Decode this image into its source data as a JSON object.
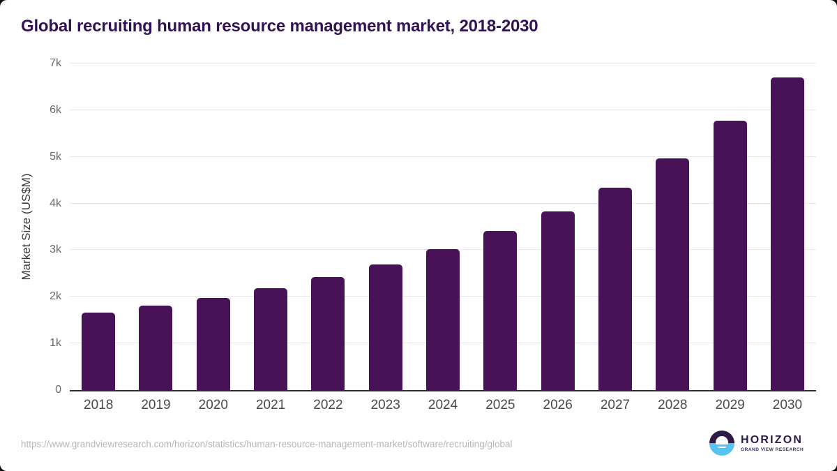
{
  "chart_data": {
    "type": "bar",
    "title": "Global recruiting human resource management market, 2018-2030",
    "xlabel": "",
    "ylabel": "Market Size (US$M)",
    "categories": [
      "2018",
      "2019",
      "2020",
      "2021",
      "2022",
      "2023",
      "2024",
      "2025",
      "2026",
      "2027",
      "2028",
      "2029",
      "2030"
    ],
    "values": [
      1660,
      1815,
      1980,
      2185,
      2425,
      2695,
      3025,
      3415,
      3835,
      4345,
      4965,
      5775,
      6700
    ],
    "ylim": [
      0,
      7000
    ],
    "yticks": [
      {
        "value": 0,
        "label": "0"
      },
      {
        "value": 1000,
        "label": "1k"
      },
      {
        "value": 2000,
        "label": "2k"
      },
      {
        "value": 3000,
        "label": "3k"
      },
      {
        "value": 4000,
        "label": "4k"
      },
      {
        "value": 5000,
        "label": "5k"
      },
      {
        "value": 6000,
        "label": "6k"
      },
      {
        "value": 7000,
        "label": "7k"
      }
    ],
    "grid": true,
    "legend_position": "none",
    "bar_color": "#481259",
    "title_color": "#311253"
  },
  "footer": {
    "url": "https://www.grandviewresearch.com/horizon/statistics/human-resource-management-market/software/recruiting/global",
    "logo": {
      "brand": "HORIZON",
      "subtitle": "GRAND VIEW RESEARCH",
      "purple": "#2e1a47",
      "blue": "#56c3f0",
      "text_color": "#2b1a4e",
      "subtitle_color": "#3f2d66"
    }
  }
}
